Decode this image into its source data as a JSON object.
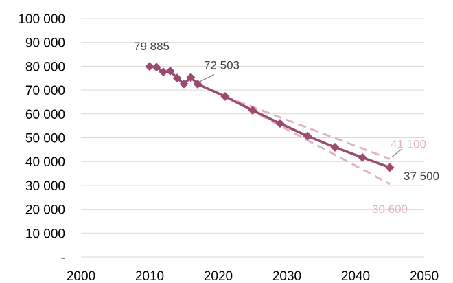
{
  "chart_data": {
    "type": "line",
    "xlim": [
      2000,
      2050
    ],
    "ylim": [
      0,
      100000
    ],
    "x_ticks": [
      {
        "value": 2000,
        "label": "2000"
      },
      {
        "value": 2010,
        "label": "2010"
      },
      {
        "value": 2020,
        "label": "2020"
      },
      {
        "value": 2030,
        "label": "2030"
      },
      {
        "value": 2040,
        "label": "2040"
      },
      {
        "value": 2050,
        "label": "2050"
      }
    ],
    "y_ticks": [
      {
        "value": 0,
        "label": "-"
      },
      {
        "value": 10000,
        "label": "10 000"
      },
      {
        "value": 20000,
        "label": "20 000"
      },
      {
        "value": 30000,
        "label": "30 000"
      },
      {
        "value": 40000,
        "label": "40 000"
      },
      {
        "value": 50000,
        "label": "50 000"
      },
      {
        "value": 60000,
        "label": "60 000"
      },
      {
        "value": 70000,
        "label": "70 000"
      },
      {
        "value": 80000,
        "label": "80 000"
      },
      {
        "value": 90000,
        "label": "90 000"
      },
      {
        "value": 100000,
        "label": "100 000"
      }
    ],
    "grid": {
      "horizontal": true,
      "vertical": false
    },
    "legend": "none",
    "series": [
      {
        "role": "main",
        "style": "solid line with diamond markers",
        "color": "#9c4a6e",
        "points": [
          [
            2010,
            79885
          ],
          [
            2011,
            79600
          ],
          [
            2012,
            77600
          ],
          [
            2013,
            78000
          ],
          [
            2014,
            75000
          ],
          [
            2015,
            72600
          ],
          [
            2016,
            75300
          ],
          [
            2017,
            72503
          ],
          [
            2021,
            67300
          ],
          [
            2025,
            61500
          ],
          [
            2029,
            56000
          ],
          [
            2033,
            50700
          ],
          [
            2037,
            46000
          ],
          [
            2041,
            41700
          ],
          [
            2045,
            37500
          ]
        ]
      },
      {
        "role": "upper",
        "style": "dashed",
        "color": "#e3b3c4",
        "points": [
          [
            2021,
            67300
          ],
          [
            2045,
            41100
          ]
        ]
      },
      {
        "role": "lower",
        "style": "dashed",
        "color": "#e3b3c4",
        "points": [
          [
            2021,
            67300
          ],
          [
            2045,
            30600
          ]
        ]
      }
    ],
    "annotations": [
      {
        "text": "79 885",
        "color": "#404040",
        "x": 2010,
        "y": 79885
      },
      {
        "text": "72 503",
        "color": "#404040",
        "x": 2017,
        "y": 72503
      },
      {
        "text": "41 100",
        "color": "#e3b3c4",
        "x": 2045,
        "y": 41100
      },
      {
        "text": "37 500",
        "color": "#404040",
        "x": 2045,
        "y": 37500
      },
      {
        "text": "30 600",
        "color": "#e3b3c4",
        "x": 2045,
        "y": 30600
      }
    ]
  }
}
